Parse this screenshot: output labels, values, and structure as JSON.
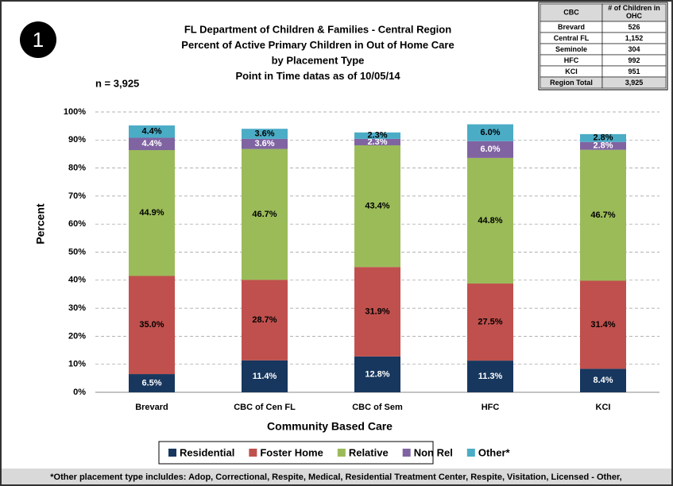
{
  "chart_data": {
    "type": "stacked_bar",
    "badge": "1",
    "title_lines": [
      "FL Department of Children & Families - Central Region",
      "Percent of Active Primary Children in Out of Home Care",
      "by Placement Type",
      "Point in Time datas as of 10/05/14"
    ],
    "annotation": "n = 3,925",
    "x_label": "Community Based Care",
    "y_label": "Percent",
    "categories": [
      "Brevard",
      "CBC of Cen FL",
      "CBC of Sem",
      "HFC",
      "KCI"
    ],
    "series": [
      {
        "name": "Residential",
        "color": "#17375e",
        "label_color": "#ffffff",
        "values": [
          6.5,
          11.4,
          12.8,
          11.3,
          8.4
        ],
        "value_labels": [
          "6.5%",
          "11.4%",
          "12.8%",
          "11.3%",
          "8.4%"
        ]
      },
      {
        "name": "Foster Home",
        "color": "#c0504d",
        "label_color": "#000000",
        "values": [
          35,
          28.7,
          31.9,
          27.5,
          31.4
        ],
        "value_labels": [
          "35.0%",
          "28.7%",
          "31.9%",
          "27.5%",
          "31.4%"
        ]
      },
      {
        "name": "Relative",
        "color": "#9bbb59",
        "label_color": "#000000",
        "values": [
          44.9,
          46.7,
          43.4,
          44.8,
          46.7
        ],
        "value_labels": [
          "44.9%",
          "46.7%",
          "43.4%",
          "44.8%",
          "46.7%"
        ]
      },
      {
        "name": "Non Rel",
        "color": "#8064a2",
        "label_color": "#ffffff",
        "values": [
          4.4,
          3.6,
          2.3,
          6,
          2.8
        ],
        "value_labels": [
          "4.4%",
          "3.6%",
          "2.3%",
          "6.0%",
          "2.8%"
        ]
      },
      {
        "name": "Other*",
        "color": "#4bacc6",
        "label_color": "#000000",
        "values": [
          4.4,
          3.6,
          2.3,
          6,
          2.8
        ],
        "value_labels": [
          "4.4%",
          "3.6%",
          "2.3%",
          "6.0%",
          "2.8%"
        ]
      }
    ],
    "ylim": [
      0,
      100
    ],
    "yticks": [
      {
        "value": 0,
        "label": "0%"
      },
      {
        "value": 10,
        "label": "10%"
      },
      {
        "value": 20,
        "label": "20%"
      },
      {
        "value": 30,
        "label": "30%"
      },
      {
        "value": 40,
        "label": "40%"
      },
      {
        "value": 50,
        "label": "50%"
      },
      {
        "value": 60,
        "label": "60%"
      },
      {
        "value": 70,
        "label": "70%"
      },
      {
        "value": 80,
        "label": "80%"
      },
      {
        "value": 90,
        "label": "90%"
      },
      {
        "value": 100,
        "label": "100%"
      }
    ],
    "grid": true,
    "table": {
      "header": [
        "CBC",
        "# of Children in OHC"
      ],
      "rows": [
        [
          "Brevard",
          "526"
        ],
        [
          "Central FL",
          "1,152"
        ],
        [
          "Seminole",
          "304"
        ],
        [
          "HFC",
          "992"
        ],
        [
          "KCI",
          "951"
        ],
        [
          "Region Total",
          "3,925"
        ]
      ]
    },
    "footnote": "*Other placement type incluldes: Adop, Correctional, Respite, Medical, Residential Treatment Center, Respite, Visitation, Licensed - Other,"
  }
}
